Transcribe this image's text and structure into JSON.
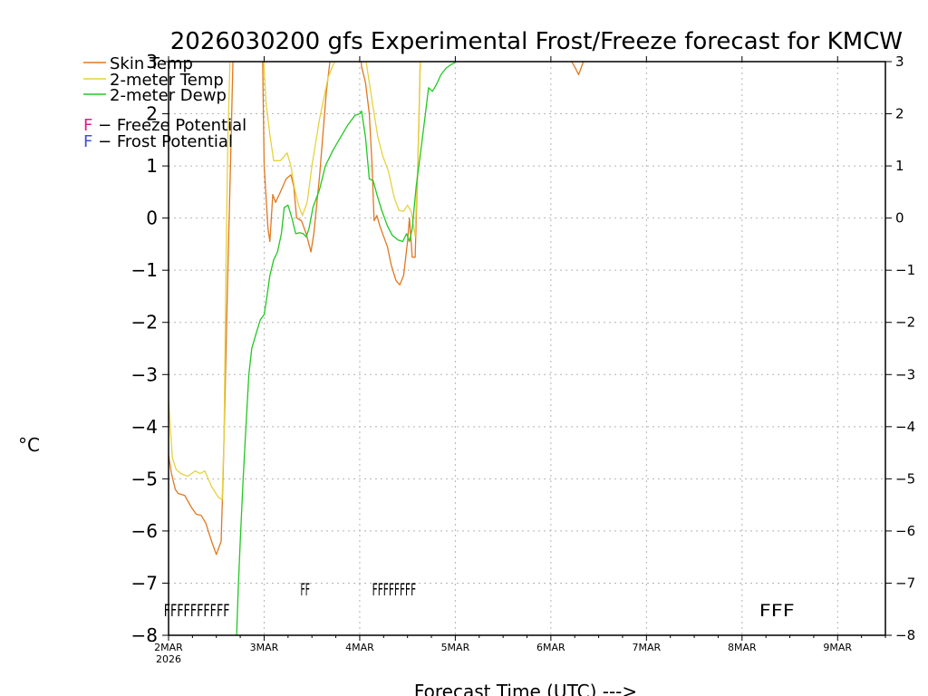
{
  "chart_data": {
    "type": "line",
    "title": "2026030200 gfs Experimental Frost/Freeze forecast for KMCW",
    "xlabel": "Forecast Time (UTC) --->",
    "ylabel": "°C",
    "ylim": [
      -8,
      3
    ],
    "xlim_days": [
      0,
      7.5
    ],
    "grid": true,
    "y_ticks": [
      -8,
      -7,
      -6,
      -5,
      -4,
      -3,
      -2,
      -1,
      0,
      1,
      2,
      3
    ],
    "y_tick_labels": [
      "−8",
      "−7",
      "−6",
      "−5",
      "−4",
      "−3",
      "−2",
      "−1",
      "0",
      "1",
      "2",
      "3"
    ],
    "x_ticks": [
      {
        "day": 0,
        "label": "2MAR",
        "sublabel": "2026"
      },
      {
        "day": 1,
        "label": "3MAR"
      },
      {
        "day": 2,
        "label": "4MAR"
      },
      {
        "day": 3,
        "label": "5MAR"
      },
      {
        "day": 4,
        "label": "6MAR"
      },
      {
        "day": 5,
        "label": "7MAR"
      },
      {
        "day": 6,
        "label": "8MAR"
      },
      {
        "day": 7,
        "label": "9MAR"
      }
    ],
    "legend": {
      "placement": "top-left",
      "entries": [
        {
          "label": "Skin Temp",
          "color": "#e07820"
        },
        {
          "label": "2-meter Temp",
          "color": "#e6d23c"
        },
        {
          "label": "2-meter Dewp",
          "color": "#22c822"
        }
      ],
      "flags": [
        {
          "letter": "F",
          "text": " − Freeze Potential",
          "color": "#d0208c"
        },
        {
          "letter": "F",
          "text": " − Frost Potential",
          "color": "#3c50d2"
        }
      ]
    },
    "series": [
      {
        "name": "Skin Temp",
        "color": "#e07820",
        "points": [
          [
            0.0,
            -4.55
          ],
          [
            0.03,
            -4.9
          ],
          [
            0.07,
            -5.2
          ],
          [
            0.1,
            -5.28
          ],
          [
            0.17,
            -5.32
          ],
          [
            0.24,
            -5.55
          ],
          [
            0.29,
            -5.68
          ],
          [
            0.34,
            -5.7
          ],
          [
            0.39,
            -5.85
          ],
          [
            0.45,
            -6.2
          ],
          [
            0.5,
            -6.45
          ],
          [
            0.55,
            -6.2
          ],
          [
            0.57,
            -5.0
          ],
          [
            0.59,
            -3.5
          ],
          [
            0.62,
            -1.0
          ],
          [
            0.65,
            1.2
          ],
          [
            0.68,
            3.5
          ],
          [
            0.98,
            3.5
          ],
          [
            1.0,
            1.0
          ],
          [
            1.04,
            -0.2
          ],
          [
            1.06,
            -0.45
          ],
          [
            1.09,
            0.45
          ],
          [
            1.12,
            0.3
          ],
          [
            1.17,
            0.5
          ],
          [
            1.23,
            0.75
          ],
          [
            1.28,
            0.83
          ],
          [
            1.31,
            0.6
          ],
          [
            1.34,
            0.0
          ],
          [
            1.39,
            -0.05
          ],
          [
            1.44,
            -0.3
          ],
          [
            1.49,
            -0.65
          ],
          [
            1.52,
            -0.3
          ],
          [
            1.58,
            0.8
          ],
          [
            1.65,
            2.4
          ],
          [
            1.72,
            3.5
          ],
          [
            2.0,
            3.5
          ],
          [
            2.02,
            2.9
          ],
          [
            2.06,
            2.6
          ],
          [
            2.1,
            2.0
          ],
          [
            2.13,
            1.0
          ],
          [
            2.15,
            -0.05
          ],
          [
            2.18,
            0.05
          ],
          [
            2.21,
            -0.15
          ],
          [
            2.25,
            -0.35
          ],
          [
            2.29,
            -0.55
          ],
          [
            2.33,
            -0.9
          ],
          [
            2.38,
            -1.2
          ],
          [
            2.42,
            -1.28
          ],
          [
            2.46,
            -1.1
          ],
          [
            2.5,
            -0.45
          ],
          [
            2.52,
            0.0
          ],
          [
            2.55,
            -0.75
          ],
          [
            2.58,
            -0.75
          ],
          [
            2.61,
            1.2
          ],
          [
            2.64,
            3.5
          ]
        ]
      },
      {
        "name": "Skin Temp (late)",
        "color": "#e07820",
        "points": [
          [
            4.2,
            3.05
          ],
          [
            4.25,
            2.9
          ],
          [
            4.29,
            2.75
          ],
          [
            4.33,
            2.95
          ],
          [
            4.38,
            3.2
          ]
        ]
      },
      {
        "name": "2-meter Temp",
        "color": "#e6d23c",
        "points": [
          [
            0.0,
            -3.5
          ],
          [
            0.04,
            -4.6
          ],
          [
            0.08,
            -4.82
          ],
          [
            0.13,
            -4.9
          ],
          [
            0.2,
            -4.95
          ],
          [
            0.28,
            -4.85
          ],
          [
            0.33,
            -4.9
          ],
          [
            0.38,
            -4.85
          ],
          [
            0.45,
            -5.15
          ],
          [
            0.52,
            -5.35
          ],
          [
            0.56,
            -5.4
          ],
          [
            0.58,
            -4.2
          ],
          [
            0.6,
            -1.0
          ],
          [
            0.62,
            1.5
          ],
          [
            0.65,
            3.5
          ],
          [
            0.98,
            3.5
          ],
          [
            1.02,
            2.2
          ],
          [
            1.06,
            1.6
          ],
          [
            1.1,
            1.1
          ],
          [
            1.17,
            1.1
          ],
          [
            1.24,
            1.25
          ],
          [
            1.28,
            1.0
          ],
          [
            1.32,
            0.55
          ],
          [
            1.36,
            0.25
          ],
          [
            1.4,
            0.05
          ],
          [
            1.45,
            0.3
          ],
          [
            1.5,
            1.0
          ],
          [
            1.58,
            1.9
          ],
          [
            1.67,
            2.7
          ],
          [
            1.78,
            3.2
          ],
          [
            1.85,
            3.5
          ],
          [
            2.0,
            3.5
          ],
          [
            2.05,
            3.2
          ],
          [
            2.1,
            2.6
          ],
          [
            2.15,
            2.0
          ],
          [
            2.19,
            1.55
          ],
          [
            2.24,
            1.2
          ],
          [
            2.3,
            0.9
          ],
          [
            2.36,
            0.4
          ],
          [
            2.41,
            0.15
          ],
          [
            2.46,
            0.13
          ],
          [
            2.5,
            0.25
          ],
          [
            2.54,
            0.12
          ],
          [
            2.58,
            -0.35
          ],
          [
            2.61,
            1.2
          ],
          [
            2.64,
            3.5
          ]
        ]
      },
      {
        "name": "2-meter Dewp",
        "color": "#22c822",
        "points": [
          [
            0.71,
            -8.1
          ],
          [
            0.73,
            -7.05
          ],
          [
            0.75,
            -6.2
          ],
          [
            0.78,
            -5.0
          ],
          [
            0.81,
            -4.0
          ],
          [
            0.84,
            -3.0
          ],
          [
            0.87,
            -2.5
          ],
          [
            0.91,
            -2.25
          ],
          [
            0.96,
            -1.95
          ],
          [
            1.0,
            -1.85
          ],
          [
            1.03,
            -1.5
          ],
          [
            1.06,
            -1.1
          ],
          [
            1.1,
            -0.8
          ],
          [
            1.14,
            -0.65
          ],
          [
            1.18,
            -0.3
          ],
          [
            1.21,
            0.2
          ],
          [
            1.25,
            0.25
          ],
          [
            1.29,
            0.0
          ],
          [
            1.33,
            -0.3
          ],
          [
            1.37,
            -0.28
          ],
          [
            1.41,
            -0.3
          ],
          [
            1.44,
            -0.36
          ],
          [
            1.47,
            -0.2
          ],
          [
            1.51,
            0.2
          ],
          [
            1.58,
            0.55
          ],
          [
            1.64,
            1.0
          ],
          [
            1.72,
            1.3
          ],
          [
            1.8,
            1.55
          ],
          [
            1.88,
            1.8
          ],
          [
            1.95,
            1.97
          ],
          [
            2.0,
            2.0
          ],
          [
            2.02,
            2.05
          ],
          [
            2.06,
            1.55
          ],
          [
            2.1,
            0.75
          ],
          [
            2.14,
            0.72
          ],
          [
            2.18,
            0.45
          ],
          [
            2.23,
            0.15
          ],
          [
            2.29,
            -0.15
          ],
          [
            2.34,
            -0.33
          ],
          [
            2.4,
            -0.42
          ],
          [
            2.45,
            -0.45
          ],
          [
            2.49,
            -0.3
          ],
          [
            2.52,
            -0.45
          ],
          [
            2.55,
            -0.2
          ],
          [
            2.59,
            0.6
          ],
          [
            2.64,
            1.3
          ],
          [
            2.68,
            1.9
          ],
          [
            2.72,
            2.5
          ],
          [
            2.76,
            2.43
          ],
          [
            2.8,
            2.55
          ],
          [
            2.85,
            2.75
          ],
          [
            2.9,
            2.87
          ],
          [
            2.96,
            2.95
          ],
          [
            3.0,
            2.98
          ]
        ]
      }
    ],
    "flag_groups": [
      {
        "kind": "freeze",
        "text": "FFFFFFFFFF",
        "start_day": -0.05,
        "end_day": 0.64,
        "y": -7.5,
        "color": "#d0208c"
      },
      {
        "kind": "frost",
        "text": "FF",
        "start_day": 1.38,
        "end_day": 1.48,
        "y": -7.1,
        "color": "#3c50d2"
      },
      {
        "kind": "frost",
        "text": "FFFFFFFF",
        "start_day": 2.13,
        "end_day": 2.59,
        "y": -7.1,
        "color": "#3c50d2"
      },
      {
        "kind": "freeze",
        "text": "FFF",
        "start_day": 6.18,
        "end_day": 6.55,
        "y": -7.5,
        "color": "#d0208c"
      }
    ]
  }
}
